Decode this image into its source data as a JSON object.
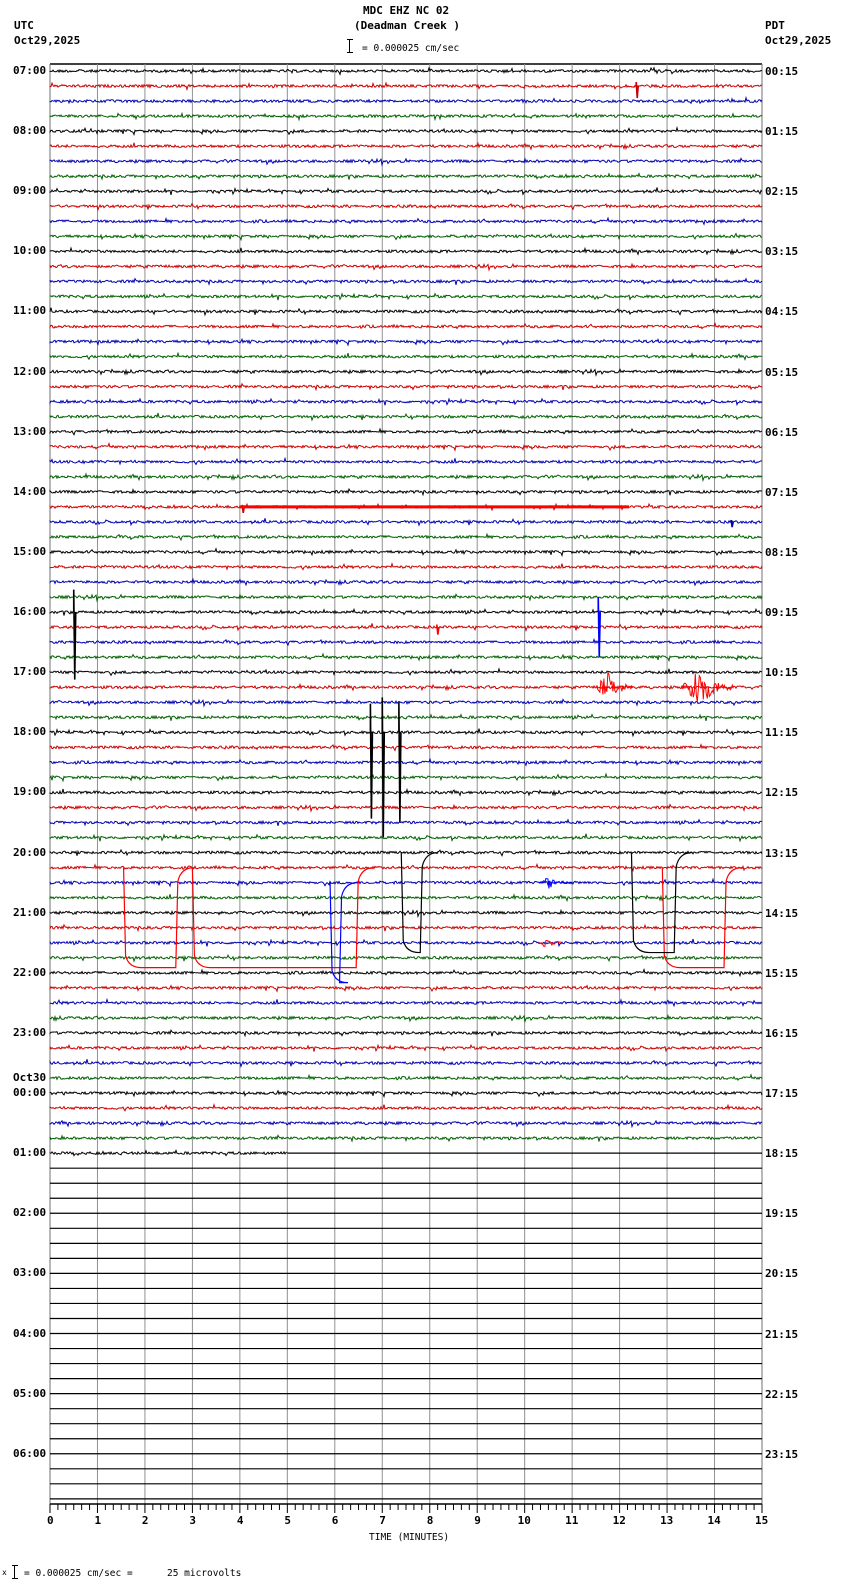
{
  "header": {
    "title": "MDC EHZ NC 02",
    "subtitle": "(Deadman Creek )",
    "scale_text": "= 0.000025 cm/sec",
    "left_tz": "UTC",
    "left_date": "Oct29,2025",
    "right_tz": "PDT",
    "right_date": "Oct29,2025"
  },
  "footer": {
    "scale_text": "= 0.000025 cm/sec =      25 microvolts",
    "prefix": "x"
  },
  "colors": {
    "trace_cycle": [
      "#000000",
      "#cc0000",
      "#0000b0",
      "#006000"
    ],
    "grid": "#909090",
    "event_red": "#ff0000",
    "event_blue": "#0000ff"
  },
  "chart_data": {
    "type": "line",
    "title": "MDC EHZ NC 02 (Deadman Creek )",
    "subtitle": "= 0.000025 cm/sec",
    "xlabel": "TIME (MINUTES)",
    "ylabel": "",
    "xlim": [
      0,
      15
    ],
    "x_ticks": [
      "0",
      "1",
      "2",
      "3",
      "4",
      "5",
      "6",
      "7",
      "8",
      "9",
      "10",
      "11",
      "12",
      "13",
      "14",
      "15"
    ],
    "grid": true,
    "traces_per_hour": 4,
    "minutes_per_trace": 15,
    "total_traces": 96,
    "recorded_traces": 73,
    "last_trace_end_minute": 5.0,
    "left_labels": [
      {
        "row": 0,
        "label": "07:00"
      },
      {
        "row": 4,
        "label": "08:00"
      },
      {
        "row": 8,
        "label": "09:00"
      },
      {
        "row": 12,
        "label": "10:00"
      },
      {
        "row": 16,
        "label": "11:00"
      },
      {
        "row": 20,
        "label": "12:00"
      },
      {
        "row": 24,
        "label": "13:00"
      },
      {
        "row": 28,
        "label": "14:00"
      },
      {
        "row": 32,
        "label": "15:00"
      },
      {
        "row": 36,
        "label": "16:00"
      },
      {
        "row": 40,
        "label": "17:00"
      },
      {
        "row": 44,
        "label": "18:00"
      },
      {
        "row": 48,
        "label": "19:00"
      },
      {
        "row": 52,
        "label": "20:00"
      },
      {
        "row": 56,
        "label": "21:00"
      },
      {
        "row": 60,
        "label": "22:00"
      },
      {
        "row": 64,
        "label": "23:00"
      },
      {
        "row": 68,
        "label": "00:00",
        "date": "Oct30"
      },
      {
        "row": 72,
        "label": "01:00"
      },
      {
        "row": 76,
        "label": "02:00"
      },
      {
        "row": 80,
        "label": "03:00"
      },
      {
        "row": 84,
        "label": "04:00"
      },
      {
        "row": 88,
        "label": "05:00"
      },
      {
        "row": 92,
        "label": "06:00"
      }
    ],
    "right_labels": [
      {
        "row": 0,
        "label": "00:15"
      },
      {
        "row": 4,
        "label": "01:15"
      },
      {
        "row": 8,
        "label": "02:15"
      },
      {
        "row": 12,
        "label": "03:15"
      },
      {
        "row": 16,
        "label": "04:15"
      },
      {
        "row": 20,
        "label": "05:15"
      },
      {
        "row": 24,
        "label": "06:15"
      },
      {
        "row": 28,
        "label": "07:15"
      },
      {
        "row": 32,
        "label": "08:15"
      },
      {
        "row": 36,
        "label": "09:15"
      },
      {
        "row": 40,
        "label": "10:15"
      },
      {
        "row": 44,
        "label": "11:15"
      },
      {
        "row": 48,
        "label": "12:15"
      },
      {
        "row": 52,
        "label": "13:15"
      },
      {
        "row": 56,
        "label": "14:15"
      },
      {
        "row": 60,
        "label": "15:15"
      },
      {
        "row": 64,
        "label": "16:15"
      },
      {
        "row": 68,
        "label": "17:15"
      },
      {
        "row": 72,
        "label": "18:15"
      },
      {
        "row": 76,
        "label": "19:15"
      },
      {
        "row": 80,
        "label": "20:15"
      },
      {
        "row": 84,
        "label": "21:15"
      },
      {
        "row": 88,
        "label": "22:15"
      },
      {
        "row": 92,
        "label": "23:15"
      }
    ],
    "events": [
      {
        "row": 1,
        "minute": 12.35,
        "type": "spike",
        "amp": 16,
        "color": "#cc0000"
      },
      {
        "row": 29,
        "minute": 4.05,
        "type": "spike",
        "amp": 8,
        "color": "#cc0000"
      },
      {
        "row": 29,
        "minute": 4.0,
        "end": 12.2,
        "type": "band",
        "amp": 3,
        "color": "#ff0000"
      },
      {
        "row": 30,
        "minute": 14.35,
        "type": "spike",
        "amp": 7,
        "color": "#0000b0"
      },
      {
        "row": 36,
        "minute": 0.5,
        "type": "spike",
        "amp": 90,
        "color": "#000000"
      },
      {
        "row": 37,
        "minute": 8.15,
        "type": "spike",
        "amp": 10,
        "color": "#ff0000"
      },
      {
        "row": 36,
        "minute": 11.55,
        "type": "spike",
        "amp": 60,
        "color": "#0000ff"
      },
      {
        "row": 41,
        "minute": 11.5,
        "end": 12.3,
        "type": "quake",
        "amp": 16,
        "color": "#ff0000"
      },
      {
        "row": 41,
        "minute": 13.3,
        "end": 14.4,
        "type": "quake",
        "amp": 22,
        "color": "#ff0000"
      },
      {
        "row": 44,
        "minute": 6.75,
        "type": "spike",
        "amp": 115,
        "color": "#000000"
      },
      {
        "row": 44,
        "minute": 7.35,
        "type": "spike",
        "amp": 120,
        "color": "#000000"
      },
      {
        "row": 44,
        "minute": 7.0,
        "type": "spike",
        "amp": 140,
        "color": "#000000"
      },
      {
        "row": 54,
        "minute": 10.3,
        "end": 11.0,
        "type": "quake",
        "amp": 6,
        "color": "#0000ff"
      },
      {
        "row": 58,
        "minute": 10.3,
        "end": 10.8,
        "type": "quake",
        "amp": 6,
        "color": "#ff0000"
      }
    ],
    "steps": [
      {
        "row": 53,
        "down": 1.55,
        "up": 2.65,
        "depth": 100,
        "color": "#ff0000"
      },
      {
        "row": 53,
        "down": 3.0,
        "up": 6.45,
        "depth": 100,
        "color": "#ff0000"
      },
      {
        "row": 53,
        "down": 12.9,
        "up": 14.2,
        "depth": 100,
        "color": "#ff0000"
      },
      {
        "row": 54,
        "down": 5.9,
        "up": 6.1,
        "depth": 100,
        "color": "#0000ff"
      },
      {
        "row": 52,
        "down": 7.4,
        "up": 7.8,
        "depth": 100,
        "color": "#000000"
      },
      {
        "row": 52,
        "down": 12.25,
        "up": 13.15,
        "depth": 100,
        "color": "#000000"
      }
    ]
  }
}
